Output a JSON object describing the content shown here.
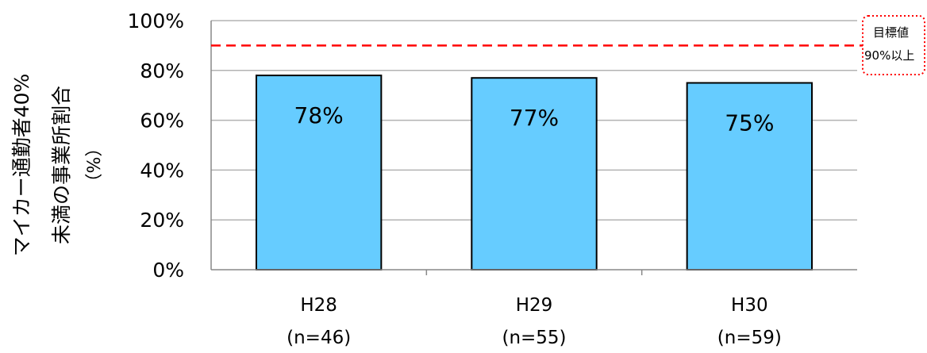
{
  "chart_data": {
    "type": "bar",
    "categories": [
      "H28",
      "H29",
      "H30"
    ],
    "category_sublabels": [
      "(n=46)",
      "(n=55)",
      "(n=59)"
    ],
    "values": [
      78,
      77,
      75
    ],
    "data_labels": [
      "78%",
      "77%",
      "75%"
    ],
    "ylabel_lines": [
      "マイカー通勤者40%",
      "未満の事業所割合",
      "（%）"
    ],
    "yticks": [
      "0%",
      "20%",
      "40%",
      "60%",
      "80%",
      "100%"
    ],
    "ylim": [
      0,
      100
    ],
    "target_line": {
      "value": 90,
      "label_lines": [
        "目標値",
        "90%以上"
      ]
    },
    "grid": true,
    "colors": {
      "bar": "#66ccff",
      "bar_border": "#000000",
      "target": "#ff0000",
      "grid": "#b3b3b3"
    }
  }
}
